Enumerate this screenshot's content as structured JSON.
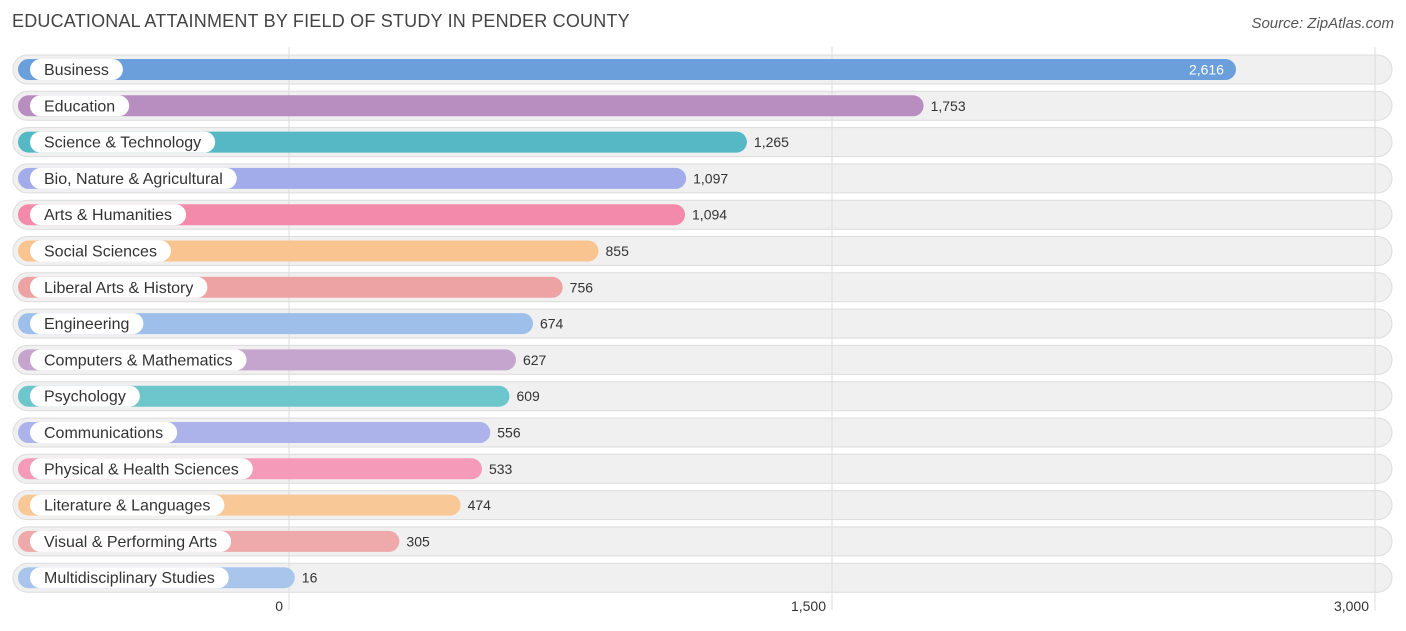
{
  "chart_data": {
    "type": "bar",
    "orientation": "horizontal",
    "title": "EDUCATIONAL ATTAINMENT BY FIELD OF STUDY IN PENDER COUNTY",
    "source": "Source: ZipAtlas.com",
    "categories": [
      "Business",
      "Education",
      "Science & Technology",
      "Bio, Nature & Agricultural",
      "Arts & Humanities",
      "Social Sciences",
      "Liberal Arts & History",
      "Engineering",
      "Computers & Mathematics",
      "Psychology",
      "Communications",
      "Physical & Health Sciences",
      "Literature & Languages",
      "Visual & Performing Arts",
      "Multidisciplinary Studies"
    ],
    "values": [
      2616,
      1753,
      1265,
      1097,
      1094,
      855,
      756,
      674,
      627,
      609,
      556,
      533,
      474,
      305,
      16
    ],
    "value_labels": [
      "2,616",
      "1,753",
      "1,265",
      "1,097",
      "1,094",
      "855",
      "756",
      "674",
      "627",
      "609",
      "556",
      "533",
      "474",
      "305",
      "16"
    ],
    "colors": [
      "#6a9fdc",
      "#b78ebf",
      "#55b8c4",
      "#a3acea",
      "#f48aab",
      "#f9c48f",
      "#eda3a3",
      "#9dbfea",
      "#c5a5cd",
      "#6ec6cd",
      "#acb2ea",
      "#f59ab8",
      "#f8c996",
      "#eeaaaa",
      "#a9c5ec"
    ],
    "xlim": [
      0,
      3000
    ],
    "x_ticks": [
      0,
      1500,
      3000
    ],
    "x_tick_labels": [
      "0",
      "1,500",
      "3,000"
    ],
    "grid": true,
    "xlabel": "",
    "ylabel": ""
  }
}
